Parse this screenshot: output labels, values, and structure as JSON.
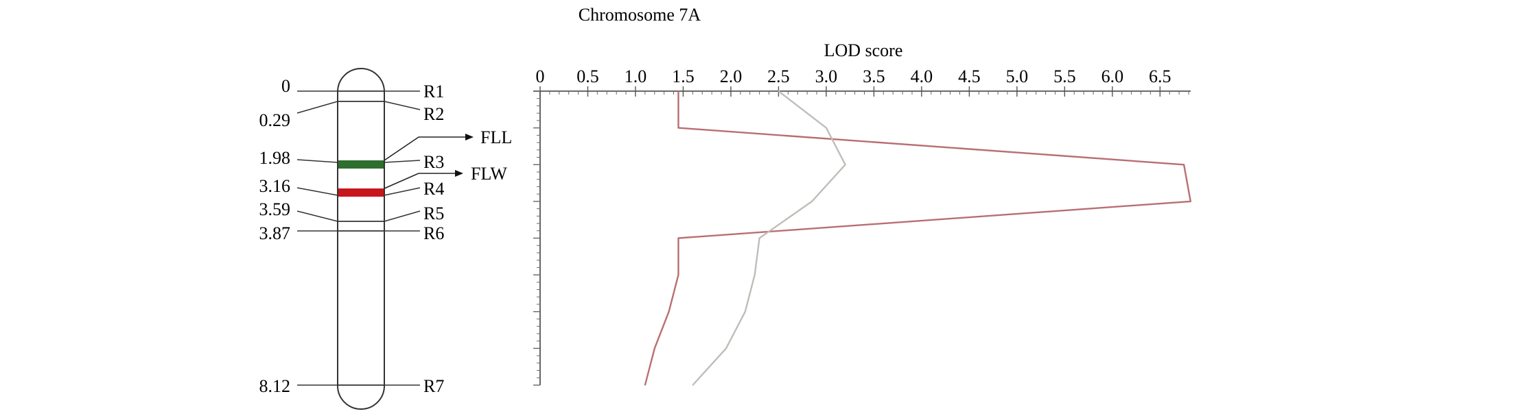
{
  "title": "Chromosome 7A",
  "chromosome": {
    "markers": [
      {
        "position": "0",
        "name": "R1"
      },
      {
        "position": "0.29",
        "name": "R2"
      },
      {
        "position": "1.98",
        "name": "R3"
      },
      {
        "position": "3.16",
        "name": "R4"
      },
      {
        "position": "3.59",
        "name": "R5"
      },
      {
        "position": "3.87",
        "name": "R6"
      },
      {
        "position": "8.12",
        "name": "R7"
      }
    ],
    "qtl": [
      {
        "label": "FLL",
        "color": "#2e6e2e"
      },
      {
        "label": "FLW",
        "color": "#c8161d"
      }
    ],
    "outline_color": "#333333"
  },
  "chart_data": {
    "type": "line",
    "xlabel": "LOD score",
    "xlim": [
      0,
      6.8
    ],
    "x_ticks": [
      "0",
      "0.5",
      "1.0",
      "1.5",
      "2.0",
      "2.5",
      "3.0",
      "3.5",
      "4.0",
      "4.5",
      "5.0",
      "5.5",
      "6.0",
      "6.5"
    ],
    "orientation": "vertical (depth axis downward, no labels)",
    "series": [
      {
        "color": "#b96e72",
        "points": [
          [
            1.45,
            0
          ],
          [
            1.45,
            1
          ],
          [
            6.75,
            2
          ],
          [
            6.82,
            3
          ],
          [
            1.45,
            4
          ],
          [
            1.45,
            5
          ],
          [
            1.35,
            6
          ],
          [
            1.2,
            7
          ],
          [
            1.1,
            8
          ]
        ]
      },
      {
        "color": "#c0bdb8",
        "points": [
          [
            2.5,
            0
          ],
          [
            3.0,
            1
          ],
          [
            3.2,
            2
          ],
          [
            2.85,
            3
          ],
          [
            2.3,
            4
          ],
          [
            2.25,
            5
          ],
          [
            2.15,
            6
          ],
          [
            1.95,
            7
          ],
          [
            1.6,
            8
          ]
        ]
      }
    ]
  }
}
